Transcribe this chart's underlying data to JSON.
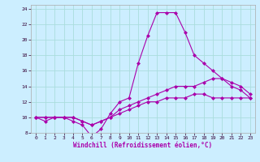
{
  "title": "",
  "xlabel": "Windchill (Refroidissement éolien,°C)",
  "ylabel": "",
  "background_color": "#cceeff",
  "grid_color": "#aadddd",
  "line_color": "#aa00aa",
  "xlim": [
    -0.5,
    23.5
  ],
  "ylim": [
    8,
    24.5
  ],
  "xticks": [
    0,
    1,
    2,
    3,
    4,
    5,
    6,
    7,
    8,
    9,
    10,
    11,
    12,
    13,
    14,
    15,
    16,
    17,
    18,
    19,
    20,
    21,
    22,
    23
  ],
  "yticks": [
    8,
    10,
    12,
    14,
    16,
    18,
    20,
    22,
    24
  ],
  "line1_x": [
    0,
    1,
    2,
    3,
    4,
    5,
    6,
    7,
    8,
    9,
    10,
    11,
    12,
    13,
    14,
    15,
    16,
    17,
    18,
    19,
    20,
    21,
    22,
    23
  ],
  "line1_y": [
    10,
    9.5,
    10,
    10,
    9.5,
    9,
    7.5,
    8.5,
    10.5,
    12,
    12.5,
    17,
    20.5,
    23.5,
    23.5,
    23.5,
    21,
    18,
    17,
    16,
    15,
    14,
    13.5,
    12.5
  ],
  "line2_x": [
    0,
    1,
    2,
    3,
    4,
    5,
    6,
    7,
    8,
    9,
    10,
    11,
    12,
    13,
    14,
    15,
    16,
    17,
    18,
    19,
    20,
    21,
    22,
    23
  ],
  "line2_y": [
    10,
    10,
    10,
    10,
    10,
    9.5,
    9,
    9.5,
    10,
    11,
    11.5,
    12,
    12.5,
    13,
    13.5,
    14,
    14,
    14,
    14.5,
    15,
    15,
    14.5,
    14,
    13
  ],
  "line3_x": [
    0,
    1,
    2,
    3,
    4,
    5,
    6,
    7,
    8,
    9,
    10,
    11,
    12,
    13,
    14,
    15,
    16,
    17,
    18,
    19,
    20,
    21,
    22,
    23
  ],
  "line3_y": [
    10,
    10,
    10,
    10,
    10,
    9.5,
    9,
    9.5,
    10,
    10.5,
    11,
    11.5,
    12,
    12,
    12.5,
    12.5,
    12.5,
    13,
    13,
    12.5,
    12.5,
    12.5,
    12.5,
    12.5
  ],
  "marker": "D",
  "markersize": 2,
  "linewidth": 0.8,
  "tick_fontsize": 4.5,
  "xlabel_fontsize": 5.5
}
